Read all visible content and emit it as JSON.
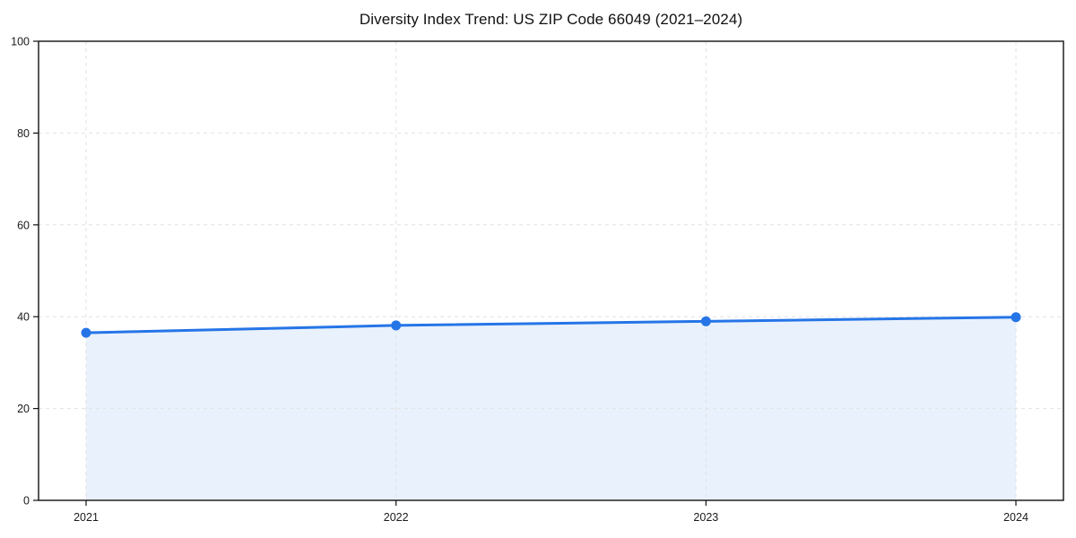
{
  "chart_data": {
    "type": "area",
    "title": "Diversity Index Trend: US ZIP Code 66049 (2021–2024)",
    "categories": [
      "2021",
      "2022",
      "2023",
      "2024"
    ],
    "values": [
      36.5,
      38.1,
      39.0,
      39.9
    ],
    "xlabel": "",
    "ylabel": "",
    "ylim": [
      0,
      100
    ],
    "yticks": [
      0,
      20,
      40,
      60,
      80,
      100
    ],
    "ytick_labels": [
      "0",
      "20",
      "40",
      "60",
      "80",
      "100"
    ],
    "grid": true,
    "grid_style": "dashed",
    "legend": false,
    "colors": {
      "line": "#2575e7",
      "marker": "#2575e7",
      "fill": "#e9f1fc",
      "grid": "#e2e2e2",
      "axis": "#111111",
      "tick_label": "#1a1a1a",
      "background": "#ffffff"
    }
  }
}
